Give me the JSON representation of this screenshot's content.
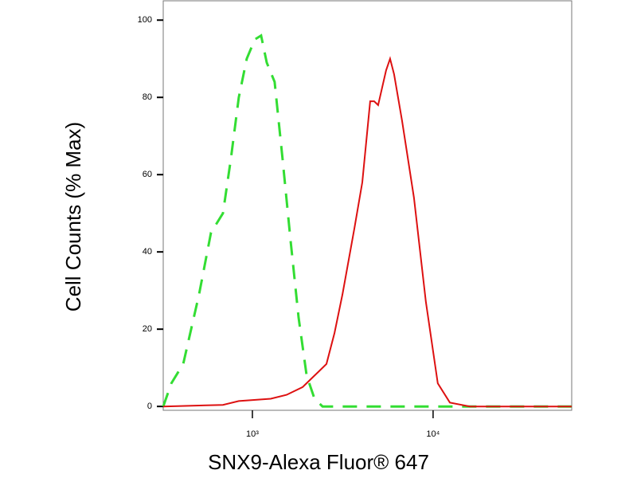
{
  "chart_data": {
    "type": "line",
    "log_x": true,
    "xlabel": "SNX9-Alexa Fluor® 647",
    "ylabel": "Cell Counts (% Max)",
    "xlim": [
      321,
      58500
    ],
    "ylim": [
      -1,
      105
    ],
    "xticks": [
      {
        "value": 1000,
        "label": "10³"
      },
      {
        "value": 10000,
        "label": "10⁴"
      }
    ],
    "yticks": [
      0,
      20,
      40,
      60,
      80,
      100
    ],
    "series": [
      {
        "color": "#33dd33",
        "dash": true,
        "x": [
          321,
          356,
          414,
          507,
          590,
          687,
          760,
          841,
          931,
          1031,
          1117,
          1200,
          1328,
          1469,
          1626,
          1801,
          1995,
          2208,
          2444,
          58500
        ],
        "values": [
          0,
          6,
          11,
          29,
          45,
          50,
          64,
          80,
          90,
          95,
          96,
          89,
          84,
          64,
          43,
          23,
          8,
          2,
          0,
          0
        ]
      },
      {
        "color": "#dd1111",
        "dash": false,
        "x": [
          321,
          687,
          841,
          1263,
          1545,
          1895,
          2323,
          2570,
          2846,
          3150,
          3664,
          4055,
          4487,
          4721,
          4966,
          5495,
          5781,
          6081,
          6730,
          7834,
          9125,
          10617,
          12380,
          15960,
          58500
        ],
        "values": [
          0,
          0.4,
          1.4,
          2,
          3,
          5,
          9,
          11,
          19,
          29,
          46,
          58,
          79,
          79,
          78,
          87,
          90,
          86,
          74,
          54,
          27,
          6,
          1,
          0,
          0
        ]
      }
    ]
  }
}
